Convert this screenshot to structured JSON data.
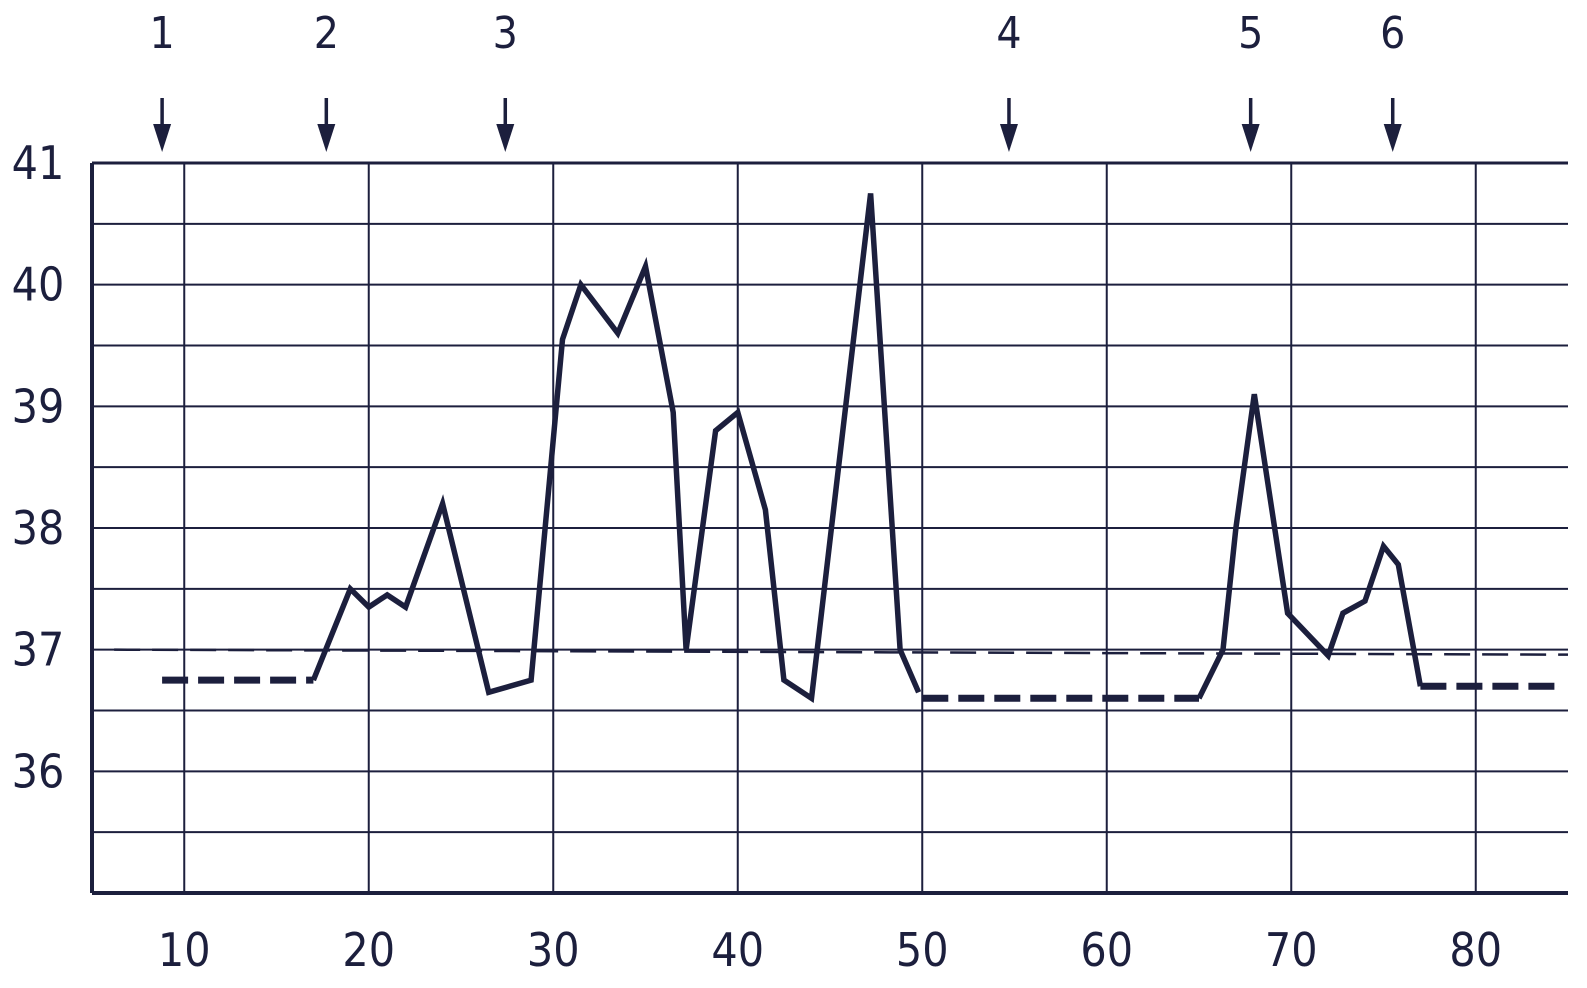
{
  "chart_data": {
    "type": "line",
    "title": "",
    "xlabel": "",
    "ylabel": "",
    "xlim": [
      5,
      85
    ],
    "ylim": [
      35,
      41
    ],
    "x_ticks": [
      10,
      20,
      30,
      40,
      50,
      60,
      70,
      80
    ],
    "y_ticks": [
      36,
      37,
      38,
      39,
      40,
      41
    ],
    "grid": true,
    "colors": {
      "ink": "#1c1f3d",
      "background": "#ffffff"
    },
    "markers": [
      {
        "label": "1",
        "x": 8.8
      },
      {
        "label": "2",
        "x": 17.7
      },
      {
        "label": "3",
        "x": 27.4
      },
      {
        "label": "4",
        "x": 54.7
      },
      {
        "label": "5",
        "x": 67.8
      },
      {
        "label": "6",
        "x": 75.5
      }
    ],
    "reference_line": {
      "y": 37.0,
      "style": "dashed"
    },
    "series": [
      {
        "style": "dashed-thick",
        "points": [
          [
            8.8,
            36.75
          ],
          [
            17.0,
            36.75
          ]
        ]
      },
      {
        "style": "solid",
        "points": [
          [
            17.0,
            36.75
          ],
          [
            19.0,
            37.5
          ],
          [
            20.0,
            37.35
          ],
          [
            21.0,
            37.45
          ],
          [
            22.0,
            37.35
          ],
          [
            24.0,
            38.2
          ],
          [
            26.5,
            36.65
          ],
          [
            28.8,
            36.75
          ],
          [
            30.5,
            39.55
          ],
          [
            31.5,
            40.0
          ],
          [
            33.5,
            39.6
          ],
          [
            35.0,
            40.15
          ],
          [
            36.5,
            38.95
          ],
          [
            37.2,
            37.0
          ],
          [
            38.8,
            38.8
          ],
          [
            40.0,
            38.95
          ],
          [
            41.5,
            38.15
          ],
          [
            42.5,
            36.75
          ],
          [
            44.0,
            36.6
          ],
          [
            47.2,
            40.75
          ],
          [
            48.8,
            37.0
          ],
          [
            49.8,
            36.65
          ]
        ]
      },
      {
        "style": "dashed-thick",
        "points": [
          [
            50.0,
            36.6
          ],
          [
            65.0,
            36.6
          ]
        ]
      },
      {
        "style": "solid",
        "points": [
          [
            65.0,
            36.6
          ],
          [
            66.3,
            37.0
          ],
          [
            67.0,
            38.0
          ],
          [
            68.0,
            39.1
          ],
          [
            68.8,
            38.3
          ],
          [
            69.8,
            37.3
          ],
          [
            72.0,
            36.95
          ],
          [
            72.8,
            37.3
          ],
          [
            74.0,
            37.4
          ],
          [
            75.0,
            37.85
          ],
          [
            75.8,
            37.7
          ],
          [
            77.0,
            36.7
          ]
        ]
      },
      {
        "style": "dashed-thick",
        "points": [
          [
            77.0,
            36.7
          ],
          [
            84.5,
            36.7
          ]
        ]
      }
    ]
  }
}
